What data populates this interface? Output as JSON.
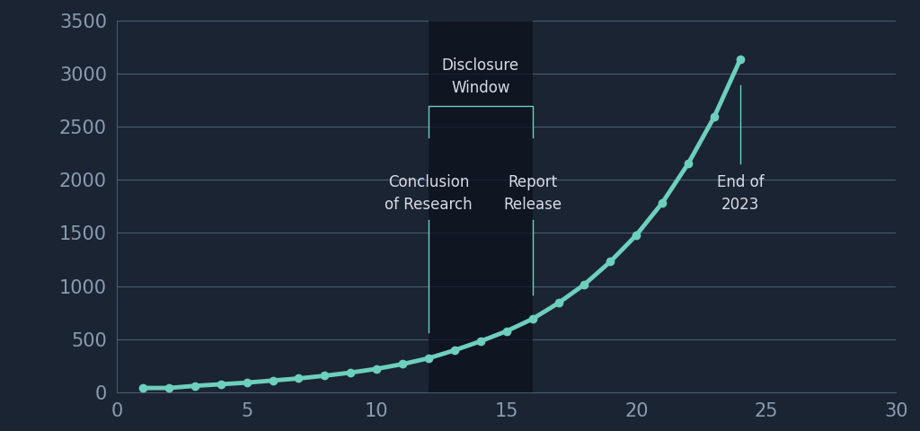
{
  "chart_data": {
    "type": "line",
    "x": [
      1,
      2,
      3,
      4,
      5,
      6,
      7,
      8,
      9,
      10,
      11,
      12,
      13,
      14,
      15,
      16,
      17,
      18,
      19,
      20,
      21,
      22,
      23,
      24
    ],
    "values": [
      40,
      40,
      60,
      75,
      90,
      110,
      130,
      155,
      185,
      220,
      265,
      320,
      395,
      480,
      575,
      690,
      840,
      1015,
      1230,
      1480,
      1785,
      2155,
      2595,
      3135
    ],
    "color": "#6dcfbd",
    "marker": "o",
    "line_style": "solid",
    "xlim": [
      0,
      30
    ],
    "xticks": [
      0,
      5,
      10,
      15,
      20,
      25,
      30
    ],
    "ylim": [
      0,
      3500
    ],
    "yticks": [
      0,
      500,
      1000,
      1500,
      2000,
      2500,
      3000,
      3500
    ],
    "grid": "y",
    "spans": [
      {
        "text": "Disclosure\nWindow",
        "x": [
          12,
          16
        ]
      }
    ],
    "annotations": [
      {
        "text": "Conclusion\nof Research",
        "x": 12
      },
      {
        "text": "Report\nRelease",
        "x": 16
      },
      {
        "text": "End of\n2023",
        "x": 24
      }
    ]
  }
}
